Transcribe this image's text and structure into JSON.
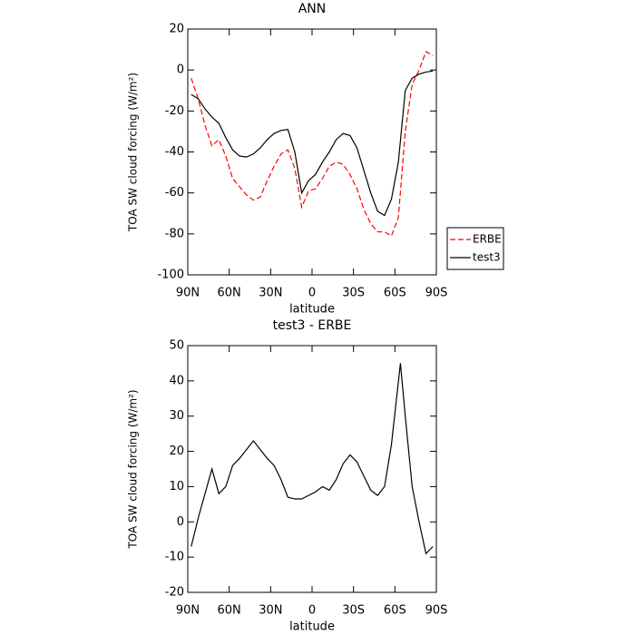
{
  "chart_data": [
    {
      "type": "line",
      "title": "ANN",
      "x_label": "latitude",
      "y_label": "TOA SW cloud forcing (W/m²)",
      "x": [
        87.5,
        82.5,
        77.5,
        72.5,
        67.5,
        62.5,
        57.5,
        52.5,
        47.5,
        42.5,
        37.5,
        32.5,
        27.5,
        22.5,
        17.5,
        12.5,
        7.5,
        2.5,
        -2.5,
        -7.5,
        -12.5,
        -17.5,
        -22.5,
        -27.5,
        -32.5,
        -37.5,
        -42.5,
        -47.5,
        -52.5,
        -57.5,
        -62.5,
        -67.5,
        -72.5,
        -77.5,
        -82.5,
        -87.5
      ],
      "series": [
        {
          "name": "ERBE",
          "color": "#ff0000",
          "line_style": "dashed",
          "values": [
            -4,
            -14,
            -27,
            -37,
            -34,
            -42,
            -53,
            -57,
            -61,
            -63.5,
            -62,
            -54,
            -47,
            -41,
            -39,
            -48,
            -67,
            -59,
            -58,
            -53,
            -47,
            -45,
            -46,
            -51,
            -58,
            -68,
            -75,
            -79,
            -79,
            -81,
            -72,
            -30,
            -7,
            0,
            9,
            7
          ]
        },
        {
          "name": "test3",
          "color": "#000000",
          "line_style": "solid",
          "values": [
            -12,
            -14,
            -19,
            -23,
            -26,
            -33,
            -39,
            -42,
            -42.5,
            -41,
            -38,
            -34,
            -31,
            -29.5,
            -29,
            -40,
            -60,
            -54,
            -51,
            -45,
            -40,
            -34,
            -31,
            -32,
            -38,
            -49,
            -60,
            -69,
            -71,
            -63,
            -45,
            -10,
            -4,
            -2,
            -1,
            -0.5
          ]
        }
      ],
      "xlim": [
        90,
        -90
      ],
      "xticks": [
        {
          "value": 90,
          "label": "90N"
        },
        {
          "value": 60,
          "label": "60N"
        },
        {
          "value": 30,
          "label": "30N"
        },
        0,
        {
          "value": -30,
          "label": "30S"
        },
        {
          "value": -60,
          "label": "60S"
        },
        {
          "value": -90,
          "label": "90S"
        }
      ],
      "ylim": [
        -100,
        20
      ],
      "yticks": [
        -100,
        -80,
        -60,
        -40,
        -20,
        0,
        20
      ],
      "legend": "right"
    },
    {
      "type": "line",
      "title": "test3 - ERBE",
      "x_label": "latitude",
      "y_label": "TOA SW cloud forcing (W/m²)",
      "x": [
        87.5,
        82.5,
        77.5,
        72.5,
        67.5,
        62.5,
        57.5,
        52.5,
        47.5,
        42.5,
        37.5,
        32.5,
        27.5,
        22.5,
        17.5,
        12.5,
        7.5,
        2.5,
        -2.5,
        -7.5,
        -12.5,
        -17.5,
        -22.5,
        -27.5,
        -32.5,
        -37.5,
        -42.5,
        -47.5,
        -52.5,
        -57.5,
        -64,
        -67.5,
        -72.5,
        -77.5,
        -82.5,
        -87.5
      ],
      "series": [
        {
          "color": "#000000",
          "line_style": "solid",
          "values": [
            -7,
            1,
            8,
            15,
            8,
            10,
            16,
            18,
            20.5,
            23,
            20.5,
            18,
            16,
            12,
            7,
            6.5,
            6.5,
            7.5,
            8.5,
            10,
            9,
            12,
            16.5,
            19,
            17,
            13,
            9,
            7.5,
            10,
            22,
            45,
            30,
            10,
            0,
            -9,
            -7
          ]
        }
      ],
      "xlim": [
        90,
        -90
      ],
      "xticks": [
        {
          "value": 90,
          "label": "90N"
        },
        {
          "value": 60,
          "label": "60N"
        },
        {
          "value": 30,
          "label": "30N"
        },
        0,
        {
          "value": -30,
          "label": "30S"
        },
        {
          "value": -60,
          "label": "60S"
        },
        {
          "value": -90,
          "label": "90S"
        }
      ],
      "ylim": [
        -20,
        50
      ],
      "yticks": [
        -20,
        -10,
        0,
        10,
        20,
        30,
        40,
        50
      ]
    }
  ]
}
